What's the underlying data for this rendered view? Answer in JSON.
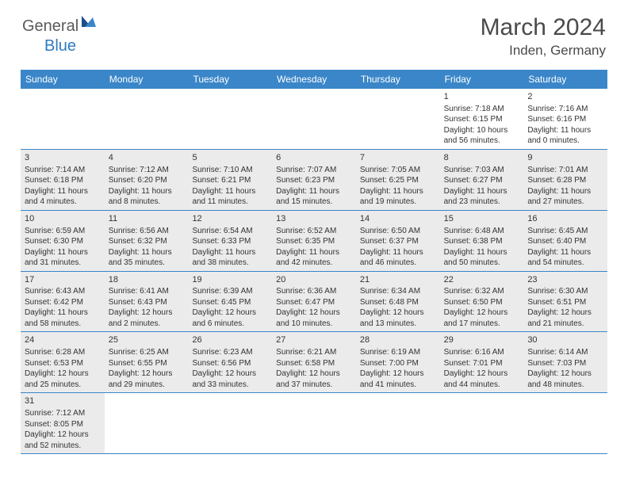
{
  "logo": {
    "text1": "General",
    "text2": "Blue"
  },
  "title": "March 2024",
  "location": "Inden, Germany",
  "colors": {
    "header_bg": "#3a86c8",
    "header_text": "#ffffff",
    "shaded_bg": "#ebebeb",
    "border": "#3a86c8",
    "text": "#333333",
    "logo_gray": "#5a5a5a",
    "logo_blue": "#2f7bbf"
  },
  "day_names": [
    "Sunday",
    "Monday",
    "Tuesday",
    "Wednesday",
    "Thursday",
    "Friday",
    "Saturday"
  ],
  "weeks": [
    [
      {
        "empty": true
      },
      {
        "empty": true
      },
      {
        "empty": true
      },
      {
        "empty": true
      },
      {
        "empty": true
      },
      {
        "day": "1",
        "sunrise": "Sunrise: 7:18 AM",
        "sunset": "Sunset: 6:15 PM",
        "daylight": "Daylight: 10 hours and 56 minutes."
      },
      {
        "day": "2",
        "sunrise": "Sunrise: 7:16 AM",
        "sunset": "Sunset: 6:16 PM",
        "daylight": "Daylight: 11 hours and 0 minutes."
      }
    ],
    [
      {
        "day": "3",
        "sunrise": "Sunrise: 7:14 AM",
        "sunset": "Sunset: 6:18 PM",
        "daylight": "Daylight: 11 hours and 4 minutes.",
        "shaded": true
      },
      {
        "day": "4",
        "sunrise": "Sunrise: 7:12 AM",
        "sunset": "Sunset: 6:20 PM",
        "daylight": "Daylight: 11 hours and 8 minutes.",
        "shaded": true
      },
      {
        "day": "5",
        "sunrise": "Sunrise: 7:10 AM",
        "sunset": "Sunset: 6:21 PM",
        "daylight": "Daylight: 11 hours and 11 minutes.",
        "shaded": true
      },
      {
        "day": "6",
        "sunrise": "Sunrise: 7:07 AM",
        "sunset": "Sunset: 6:23 PM",
        "daylight": "Daylight: 11 hours and 15 minutes.",
        "shaded": true
      },
      {
        "day": "7",
        "sunrise": "Sunrise: 7:05 AM",
        "sunset": "Sunset: 6:25 PM",
        "daylight": "Daylight: 11 hours and 19 minutes.",
        "shaded": true
      },
      {
        "day": "8",
        "sunrise": "Sunrise: 7:03 AM",
        "sunset": "Sunset: 6:27 PM",
        "daylight": "Daylight: 11 hours and 23 minutes.",
        "shaded": true
      },
      {
        "day": "9",
        "sunrise": "Sunrise: 7:01 AM",
        "sunset": "Sunset: 6:28 PM",
        "daylight": "Daylight: 11 hours and 27 minutes.",
        "shaded": true
      }
    ],
    [
      {
        "day": "10",
        "sunrise": "Sunrise: 6:59 AM",
        "sunset": "Sunset: 6:30 PM",
        "daylight": "Daylight: 11 hours and 31 minutes.",
        "shaded": true
      },
      {
        "day": "11",
        "sunrise": "Sunrise: 6:56 AM",
        "sunset": "Sunset: 6:32 PM",
        "daylight": "Daylight: 11 hours and 35 minutes.",
        "shaded": true
      },
      {
        "day": "12",
        "sunrise": "Sunrise: 6:54 AM",
        "sunset": "Sunset: 6:33 PM",
        "daylight": "Daylight: 11 hours and 38 minutes.",
        "shaded": true
      },
      {
        "day": "13",
        "sunrise": "Sunrise: 6:52 AM",
        "sunset": "Sunset: 6:35 PM",
        "daylight": "Daylight: 11 hours and 42 minutes.",
        "shaded": true
      },
      {
        "day": "14",
        "sunrise": "Sunrise: 6:50 AM",
        "sunset": "Sunset: 6:37 PM",
        "daylight": "Daylight: 11 hours and 46 minutes.",
        "shaded": true
      },
      {
        "day": "15",
        "sunrise": "Sunrise: 6:48 AM",
        "sunset": "Sunset: 6:38 PM",
        "daylight": "Daylight: 11 hours and 50 minutes.",
        "shaded": true
      },
      {
        "day": "16",
        "sunrise": "Sunrise: 6:45 AM",
        "sunset": "Sunset: 6:40 PM",
        "daylight": "Daylight: 11 hours and 54 minutes.",
        "shaded": true
      }
    ],
    [
      {
        "day": "17",
        "sunrise": "Sunrise: 6:43 AM",
        "sunset": "Sunset: 6:42 PM",
        "daylight": "Daylight: 11 hours and 58 minutes.",
        "shaded": true
      },
      {
        "day": "18",
        "sunrise": "Sunrise: 6:41 AM",
        "sunset": "Sunset: 6:43 PM",
        "daylight": "Daylight: 12 hours and 2 minutes.",
        "shaded": true
      },
      {
        "day": "19",
        "sunrise": "Sunrise: 6:39 AM",
        "sunset": "Sunset: 6:45 PM",
        "daylight": "Daylight: 12 hours and 6 minutes.",
        "shaded": true
      },
      {
        "day": "20",
        "sunrise": "Sunrise: 6:36 AM",
        "sunset": "Sunset: 6:47 PM",
        "daylight": "Daylight: 12 hours and 10 minutes.",
        "shaded": true
      },
      {
        "day": "21",
        "sunrise": "Sunrise: 6:34 AM",
        "sunset": "Sunset: 6:48 PM",
        "daylight": "Daylight: 12 hours and 13 minutes.",
        "shaded": true
      },
      {
        "day": "22",
        "sunrise": "Sunrise: 6:32 AM",
        "sunset": "Sunset: 6:50 PM",
        "daylight": "Daylight: 12 hours and 17 minutes.",
        "shaded": true
      },
      {
        "day": "23",
        "sunrise": "Sunrise: 6:30 AM",
        "sunset": "Sunset: 6:51 PM",
        "daylight": "Daylight: 12 hours and 21 minutes.",
        "shaded": true
      }
    ],
    [
      {
        "day": "24",
        "sunrise": "Sunrise: 6:28 AM",
        "sunset": "Sunset: 6:53 PM",
        "daylight": "Daylight: 12 hours and 25 minutes.",
        "shaded": true
      },
      {
        "day": "25",
        "sunrise": "Sunrise: 6:25 AM",
        "sunset": "Sunset: 6:55 PM",
        "daylight": "Daylight: 12 hours and 29 minutes.",
        "shaded": true
      },
      {
        "day": "26",
        "sunrise": "Sunrise: 6:23 AM",
        "sunset": "Sunset: 6:56 PM",
        "daylight": "Daylight: 12 hours and 33 minutes.",
        "shaded": true
      },
      {
        "day": "27",
        "sunrise": "Sunrise: 6:21 AM",
        "sunset": "Sunset: 6:58 PM",
        "daylight": "Daylight: 12 hours and 37 minutes.",
        "shaded": true
      },
      {
        "day": "28",
        "sunrise": "Sunrise: 6:19 AM",
        "sunset": "Sunset: 7:00 PM",
        "daylight": "Daylight: 12 hours and 41 minutes.",
        "shaded": true
      },
      {
        "day": "29",
        "sunrise": "Sunrise: 6:16 AM",
        "sunset": "Sunset: 7:01 PM",
        "daylight": "Daylight: 12 hours and 44 minutes.",
        "shaded": true
      },
      {
        "day": "30",
        "sunrise": "Sunrise: 6:14 AM",
        "sunset": "Sunset: 7:03 PM",
        "daylight": "Daylight: 12 hours and 48 minutes.",
        "shaded": true
      }
    ],
    [
      {
        "day": "31",
        "sunrise": "Sunrise: 7:12 AM",
        "sunset": "Sunset: 8:05 PM",
        "daylight": "Daylight: 12 hours and 52 minutes.",
        "shaded": true
      },
      {
        "empty": true
      },
      {
        "empty": true
      },
      {
        "empty": true
      },
      {
        "empty": true
      },
      {
        "empty": true
      },
      {
        "empty": true
      }
    ]
  ]
}
